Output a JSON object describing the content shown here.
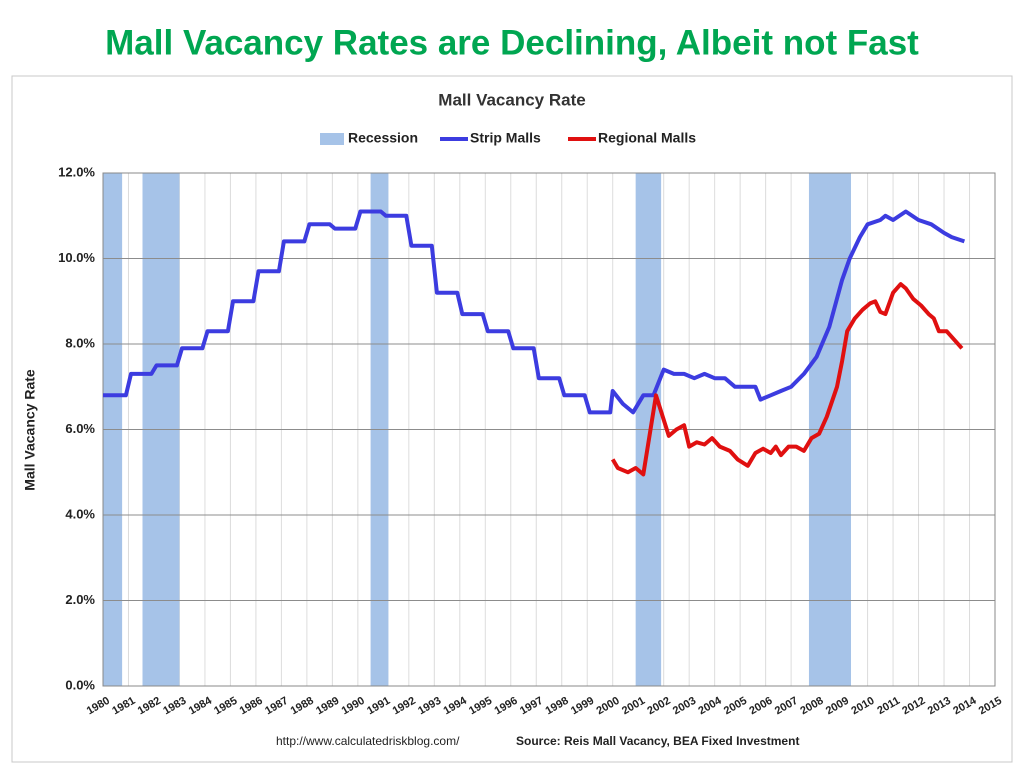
{
  "page_title": "Mall Vacancy Rates are Declining, Albeit not Fast",
  "chart_data": {
    "type": "line",
    "title": "Mall Vacancy Rate",
    "y_label": "Mall Vacancy Rate",
    "source_url": "http://www.calculatedriskblog.com/",
    "source": "Source: Reis Mall Vacancy, BEA Fixed Investment",
    "recession": {
      "name": "Recession",
      "color": "#a6c3e8",
      "periods": [
        [
          1980.0,
          1980.75
        ],
        [
          1981.55,
          1983.0
        ],
        [
          1990.5,
          1991.2
        ],
        [
          2000.9,
          2001.9
        ],
        [
          2007.7,
          2009.35
        ]
      ]
    },
    "series": [
      {
        "name": "Strip Malls",
        "color": "#3c3ce0",
        "x": [
          1980.0,
          1980.9,
          1981.1,
          1981.9,
          1982.1,
          1982.9,
          1983.1,
          1983.9,
          1984.1,
          1984.9,
          1985.1,
          1985.9,
          1986.1,
          1986.9,
          1987.1,
          1987.9,
          1988.1,
          1988.9,
          1989.1,
          1989.9,
          1990.1,
          1990.9,
          1991.1,
          1991.9,
          1992.1,
          1992.9,
          1993.1,
          1993.9,
          1994.1,
          1994.9,
          1995.1,
          1995.9,
          1996.1,
          1996.9,
          1997.1,
          1997.9,
          1998.1,
          1998.9,
          1999.1,
          1999.9,
          2000.0,
          2000.4,
          2000.8,
          2001.2,
          2001.6,
          2002.0,
          2002.4,
          2002.8,
          2003.2,
          2003.6,
          2004.0,
          2004.4,
          2004.8,
          2005.2,
          2005.6,
          2005.8,
          2006.2,
          2006.6,
          2007.0,
          2007.5,
          2008.0,
          2008.5,
          2009.0,
          2009.3,
          2009.7,
          2010.0,
          2010.5,
          2010.7,
          2011.0,
          2011.5,
          2012.0,
          2012.5,
          2013.0,
          2013.3,
          2013.8
        ],
        "values": [
          6.8,
          6.8,
          7.3,
          7.3,
          7.5,
          7.5,
          7.9,
          7.9,
          8.3,
          8.3,
          9.0,
          9.0,
          9.7,
          9.7,
          10.4,
          10.4,
          10.8,
          10.8,
          10.7,
          10.7,
          11.1,
          11.1,
          11.0,
          11.0,
          10.3,
          10.3,
          9.2,
          9.2,
          8.7,
          8.7,
          8.3,
          8.3,
          7.9,
          7.9,
          7.2,
          7.2,
          6.8,
          6.8,
          6.4,
          6.4,
          6.9,
          6.6,
          6.4,
          6.8,
          6.8,
          7.4,
          7.3,
          7.3,
          7.2,
          7.3,
          7.2,
          7.2,
          7.0,
          7.0,
          7.0,
          6.7,
          6.8,
          6.9,
          7.0,
          7.3,
          7.7,
          8.4,
          9.5,
          10.0,
          10.5,
          10.8,
          10.9,
          11.0,
          10.9,
          11.1,
          10.9,
          10.8,
          10.6,
          10.5,
          10.4
        ]
      },
      {
        "name": "Regional Malls",
        "color": "#e01010",
        "x": [
          2000.0,
          2000.2,
          2000.6,
          2000.9,
          2001.2,
          2001.7,
          2002.2,
          2002.5,
          2002.8,
          2003.0,
          2003.3,
          2003.6,
          2003.9,
          2004.2,
          2004.6,
          2004.9,
          2005.3,
          2005.6,
          2005.9,
          2006.2,
          2006.4,
          2006.6,
          2006.9,
          2007.2,
          2007.5,
          2007.8,
          2008.1,
          2008.4,
          2008.8,
          2009.0,
          2009.2,
          2009.5,
          2009.8,
          2010.1,
          2010.3,
          2010.5,
          2010.7,
          2011.0,
          2011.3,
          2011.5,
          2011.8,
          2012.1,
          2012.4,
          2012.6,
          2012.8,
          2013.1,
          2013.4,
          2013.7
        ],
        "values": [
          5.3,
          5.1,
          5.0,
          5.1,
          4.95,
          6.8,
          5.85,
          6.0,
          6.1,
          5.6,
          5.7,
          5.65,
          5.8,
          5.6,
          5.5,
          5.3,
          5.15,
          5.45,
          5.55,
          5.45,
          5.6,
          5.4,
          5.6,
          5.6,
          5.5,
          5.8,
          5.9,
          6.3,
          7.0,
          7.6,
          8.3,
          8.6,
          8.8,
          8.95,
          9.0,
          8.75,
          8.7,
          9.2,
          9.4,
          9.3,
          9.05,
          8.9,
          8.7,
          8.6,
          8.3,
          8.3,
          8.1,
          7.9
        ]
      }
    ],
    "xlim": [
      1980,
      2015
    ],
    "xticks": [
      1980,
      1981,
      1982,
      1983,
      1984,
      1985,
      1986,
      1987,
      1988,
      1989,
      1990,
      1991,
      1992,
      1993,
      1994,
      1995,
      1996,
      1997,
      1998,
      1999,
      2000,
      2001,
      2002,
      2003,
      2004,
      2005,
      2006,
      2007,
      2008,
      2009,
      2010,
      2011,
      2012,
      2013,
      2014,
      2015
    ],
    "ylim": [
      0,
      12
    ],
    "yticks": [
      {
        "value": 0,
        "label": "0.0%"
      },
      {
        "value": 2,
        "label": "2.0%"
      },
      {
        "value": 4,
        "label": "4.0%"
      },
      {
        "value": 6,
        "label": "6.0%"
      },
      {
        "value": 8,
        "label": "8.0%"
      },
      {
        "value": 10,
        "label": "10.0%"
      },
      {
        "value": 12,
        "label": "12.0%"
      }
    ],
    "grid": true
  }
}
